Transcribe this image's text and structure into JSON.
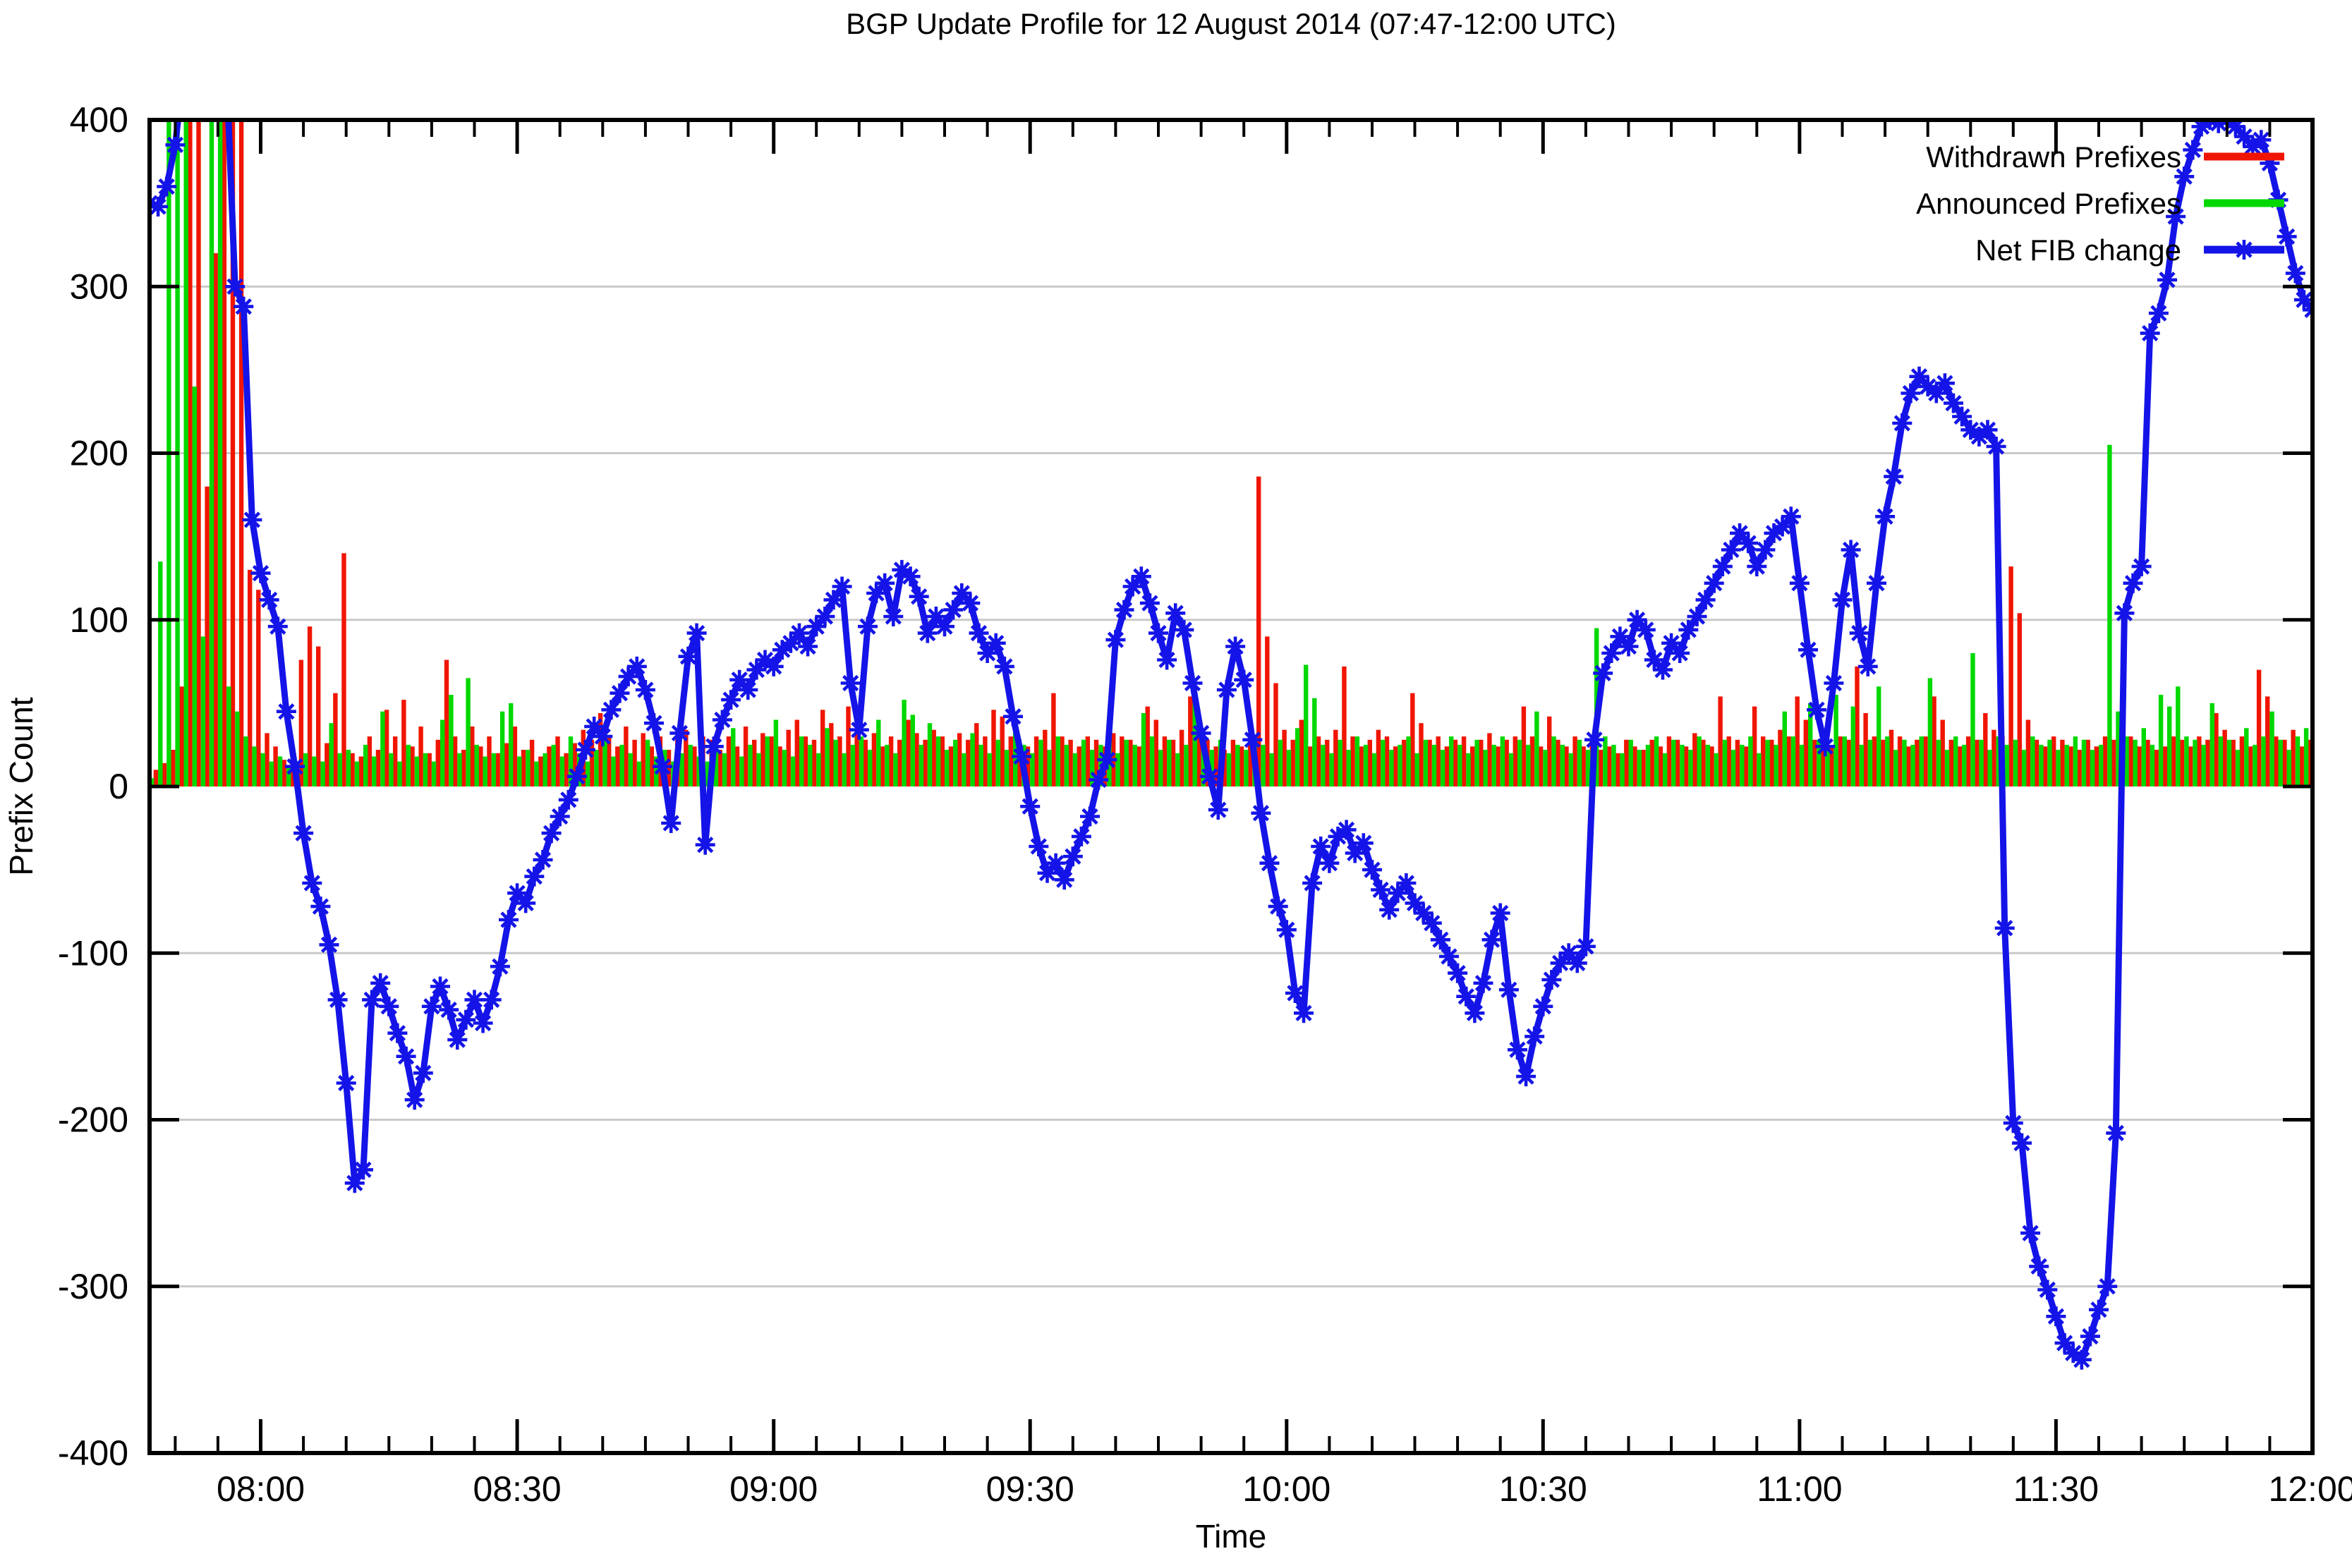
{
  "chart_data": {
    "type": "bar",
    "subtype": "bars-plus-line-timeseries",
    "title": "BGP Update Profile for 12 August 2014 (07:47-12:00 UTC)",
    "xlabel": "Time",
    "ylabel": "Prefix Count",
    "ylim": [
      -400,
      400
    ],
    "grid": true,
    "legend_position": "top-right",
    "start_time": "07:47",
    "end_time": "12:00",
    "interval_minutes": 1,
    "clip_note": "values beyond the +/-400 window are clipped at the plot border",
    "y_tick_labels": [
      "400",
      "300",
      "200",
      "100",
      "0",
      "-100",
      "-200",
      "-300",
      "-400"
    ],
    "y_tick_values": [
      400,
      300,
      200,
      100,
      0,
      -100,
      -200,
      -300,
      -400
    ],
    "x_ticks": [
      {
        "label": "08:00",
        "minute": 13
      },
      {
        "label": "08:30",
        "minute": 43
      },
      {
        "label": "09:00",
        "minute": 73
      },
      {
        "label": "09:30",
        "minute": 103
      },
      {
        "label": "10:00",
        "minute": 133
      },
      {
        "label": "10:30",
        "minute": 163
      },
      {
        "label": "11:00",
        "minute": 193
      },
      {
        "label": "11:30",
        "minute": 223
      },
      {
        "label": "12:00",
        "minute": 253
      }
    ],
    "x_minor_start": 3,
    "x_minor_step": 5,
    "colors": {
      "withdrawn": "#f01500",
      "announced": "#00d800",
      "net_fib": "#1414e8",
      "grid": "#c9c9c9",
      "axis": "#000000"
    },
    "series": [
      {
        "name": "Withdrawn Prefixes",
        "type": "bar",
        "color": "#f01500",
        "values": [
          8,
          10,
          14,
          22,
          60,
          420,
          420,
          180,
          320,
          420,
          420,
          420,
          130,
          118,
          32,
          24,
          16,
          20,
          76,
          96,
          84,
          26,
          56,
          140,
          20,
          18,
          30,
          22,
          46,
          30,
          52,
          24,
          36,
          20,
          28,
          76,
          30,
          22,
          36,
          24,
          30,
          20,
          26,
          36,
          22,
          28,
          18,
          24,
          30,
          20,
          26,
          34,
          28,
          44,
          30,
          24,
          36,
          28,
          32,
          24,
          30,
          22,
          28,
          34,
          24,
          30,
          28,
          22,
          30,
          24,
          36,
          28,
          32,
          30,
          24,
          34,
          40,
          30,
          28,
          46,
          38,
          30,
          48,
          34,
          28,
          32,
          24,
          30,
          28,
          40,
          32,
          28,
          34,
          30,
          24,
          32,
          28,
          38,
          30,
          46,
          42,
          30,
          28,
          24,
          30,
          34,
          56,
          30,
          28,
          24,
          30,
          28,
          24,
          32,
          30,
          28,
          24,
          48,
          40,
          30,
          28,
          34,
          54,
          30,
          28,
          24,
          22,
          28,
          24,
          30,
          186,
          90,
          62,
          34,
          28,
          40,
          24,
          30,
          28,
          34,
          72,
          30,
          24,
          28,
          34,
          30,
          24,
          28,
          56,
          38,
          28,
          30,
          24,
          28,
          30,
          24,
          28,
          32,
          24,
          28,
          30,
          48,
          30,
          24,
          42,
          28,
          24,
          30,
          24,
          28,
          22,
          24,
          20,
          28,
          24,
          22,
          28,
          24,
          30,
          28,
          24,
          32,
          28,
          24,
          54,
          30,
          28,
          24,
          48,
          30,
          28,
          34,
          30,
          54,
          40,
          28,
          32,
          24,
          30,
          28,
          72,
          44,
          30,
          28,
          34,
          30,
          24,
          28,
          30,
          54,
          40,
          28,
          24,
          30,
          28,
          44,
          34,
          30,
          132,
          104,
          40,
          28,
          24,
          30,
          28,
          24,
          22,
          28,
          24,
          30,
          28,
          24,
          30,
          24,
          28,
          22,
          24,
          30,
          28,
          24,
          30,
          28,
          44,
          34,
          28,
          30,
          24,
          70,
          54,
          30,
          28,
          34,
          24,
          28
        ]
      },
      {
        "name": "Announced Prefixes",
        "type": "bar",
        "color": "#00d800",
        "values": [
          5,
          135,
          420,
          420,
          420,
          240,
          90,
          420,
          420,
          60,
          45,
          30,
          24,
          20,
          15,
          18,
          12,
          15,
          20,
          18,
          15,
          38,
          20,
          22,
          15,
          25,
          18,
          45,
          20,
          15,
          25,
          18,
          20,
          15,
          40,
          55,
          20,
          65,
          25,
          18,
          20,
          45,
          50,
          18,
          22,
          15,
          20,
          25,
          18,
          30,
          20,
          15,
          22,
          35,
          18,
          25,
          20,
          15,
          28,
          18,
          22,
          15,
          20,
          25,
          18,
          15,
          30,
          20,
          35,
          18,
          25,
          20,
          30,
          40,
          22,
          18,
          30,
          25,
          20,
          35,
          28,
          20,
          25,
          30,
          22,
          40,
          25,
          20,
          52,
          43,
          25,
          38,
          30,
          22,
          28,
          20,
          32,
          25,
          20,
          28,
          22,
          35,
          25,
          20,
          28,
          22,
          30,
          25,
          20,
          28,
          22,
          25,
          30,
          20,
          28,
          25,
          44,
          30,
          22,
          28,
          20,
          25,
          57,
          30,
          22,
          28,
          20,
          25,
          22,
          30,
          25,
          20,
          28,
          22,
          35,
          73,
          53,
          25,
          20,
          28,
          22,
          30,
          25,
          20,
          28,
          22,
          25,
          30,
          20,
          28,
          25,
          22,
          30,
          25,
          20,
          28,
          22,
          25,
          30,
          20,
          28,
          25,
          45,
          22,
          30,
          25,
          20,
          28,
          22,
          95,
          30,
          25,
          20,
          28,
          22,
          25,
          30,
          20,
          28,
          25,
          22,
          30,
          25,
          20,
          28,
          22,
          25,
          30,
          20,
          28,
          25,
          45,
          30,
          25,
          50,
          28,
          22,
          55,
          30,
          48,
          25,
          28,
          60,
          30,
          22,
          28,
          25,
          30,
          65,
          28,
          22,
          30,
          25,
          80,
          28,
          22,
          30,
          25,
          28,
          22,
          30,
          25,
          28,
          22,
          25,
          30,
          28,
          22,
          25,
          205,
          45,
          30,
          28,
          35,
          25,
          55,
          48,
          60,
          30,
          28,
          25,
          50,
          30,
          28,
          22,
          35,
          25,
          30,
          45,
          28,
          22,
          30,
          35,
          25
        ]
      },
      {
        "name": "Net FIB change",
        "type": "line",
        "marker": "asterisk",
        "color": "#1414e8",
        "values": [
          350,
          348,
          360,
          385,
          430,
          430,
          430,
          430,
          430,
          430,
          300,
          288,
          160,
          128,
          112,
          96,
          45,
          12,
          -28,
          -58,
          -72,
          -95,
          -128,
          -178,
          -238,
          -230,
          -128,
          -118,
          -132,
          -148,
          -162,
          -188,
          -172,
          -132,
          -120,
          -134,
          -152,
          -140,
          -128,
          -142,
          -128,
          -108,
          -80,
          -64,
          -70,
          -54,
          -44,
          -28,
          -18,
          -8,
          6,
          22,
          36,
          30,
          46,
          56,
          66,
          72,
          58,
          38,
          12,
          -22,
          32,
          78,
          92,
          -35,
          24,
          40,
          52,
          64,
          58,
          70,
          76,
          72,
          82,
          86,
          92,
          84,
          96,
          102,
          112,
          120,
          62,
          34,
          96,
          116,
          122,
          102,
          130,
          126,
          114,
          92,
          102,
          96,
          106,
          116,
          110,
          92,
          80,
          86,
          72,
          42,
          18,
          -12,
          -36,
          -52,
          -46,
          -56,
          -42,
          -30,
          -18,
          4,
          16,
          88,
          106,
          120,
          126,
          110,
          92,
          76,
          104,
          94,
          62,
          32,
          6,
          -14,
          58,
          84,
          64,
          28,
          -16,
          -46,
          -72,
          -86,
          -124,
          -136,
          -58,
          -36,
          -46,
          -30,
          -26,
          -40,
          -34,
          -50,
          -62,
          -74,
          -64,
          -58,
          -70,
          -76,
          -82,
          -92,
          -102,
          -112,
          -126,
          -136,
          -118,
          -92,
          -76,
          -122,
          -158,
          -174,
          -150,
          -132,
          -116,
          -106,
          -100,
          -106,
          -96,
          28,
          68,
          80,
          90,
          84,
          100,
          94,
          76,
          70,
          86,
          80,
          94,
          102,
          112,
          122,
          132,
          142,
          152,
          146,
          132,
          142,
          152,
          156,
          162,
          122,
          82,
          46,
          24,
          62,
          112,
          142,
          92,
          72,
          122,
          162,
          186,
          218,
          236,
          246,
          240,
          236,
          242,
          230,
          222,
          214,
          210,
          214,
          204,
          -85,
          -202,
          -214,
          -268,
          -288,
          -302,
          -318,
          -334,
          -340,
          -344,
          -330,
          -314,
          -300,
          -208,
          104,
          122,
          132,
          272,
          284,
          304,
          342,
          366,
          382,
          396,
          400,
          398,
          400,
          396,
          390,
          384,
          388,
          374,
          352,
          330,
          308,
          292,
          286
        ]
      }
    ]
  }
}
